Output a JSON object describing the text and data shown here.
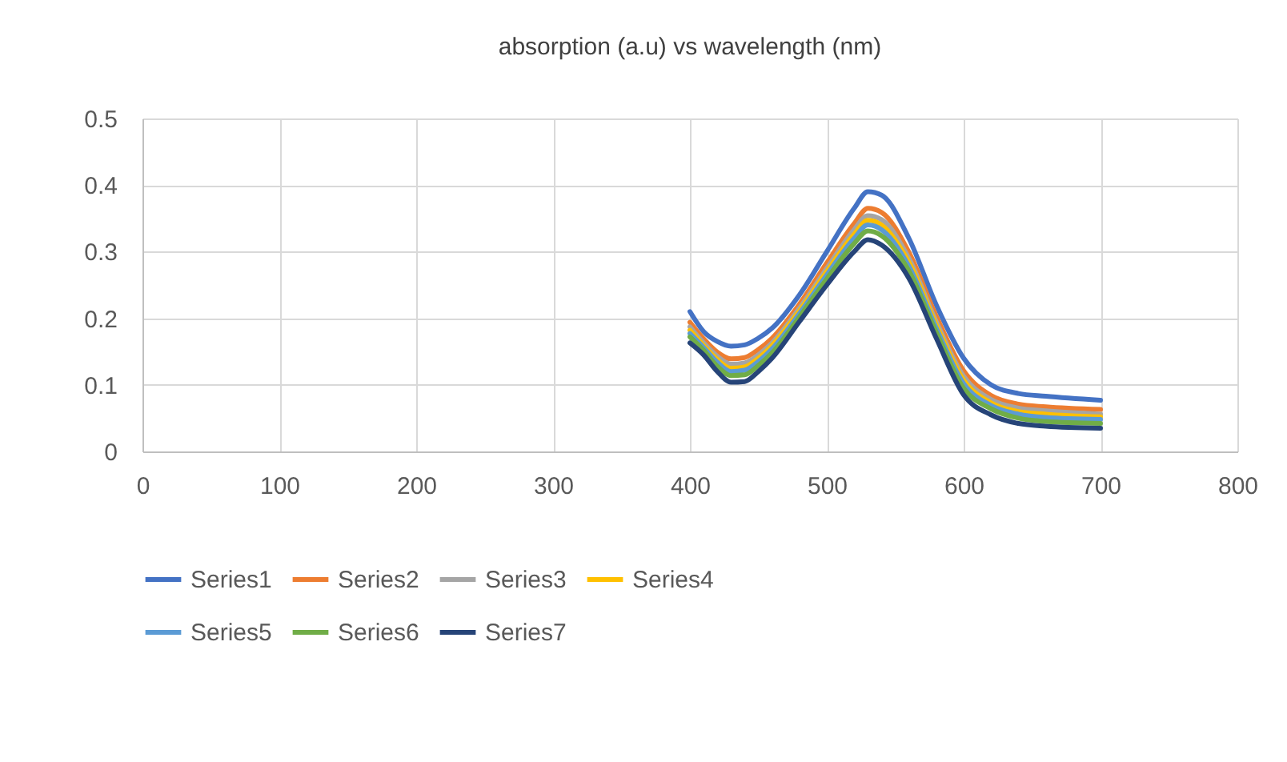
{
  "chart_data": {
    "type": "line",
    "title": "absorption (a.u) vs wavelength (nm)",
    "x": [
      400,
      410,
      420,
      430,
      440,
      450,
      460,
      480,
      500,
      520,
      530,
      540,
      560,
      580,
      600,
      620,
      640,
      660,
      700
    ],
    "series": [
      {
        "name": "Series1",
        "color": "#4472c4",
        "values": [
          0.21,
          0.18,
          0.165,
          0.158,
          0.16,
          0.17,
          0.185,
          0.235,
          0.3,
          0.365,
          0.39,
          0.385,
          0.32,
          0.22,
          0.14,
          0.1,
          0.087,
          0.083,
          0.077
        ]
      },
      {
        "name": "Series2",
        "color": "#ed7d31",
        "values": [
          0.194,
          0.169,
          0.149,
          0.139,
          0.141,
          0.153,
          0.17,
          0.221,
          0.283,
          0.342,
          0.365,
          0.359,
          0.299,
          0.203,
          0.121,
          0.084,
          0.071,
          0.067,
          0.063
        ]
      },
      {
        "name": "Series3",
        "color": "#a5a5a5",
        "values": [
          0.187,
          0.163,
          0.143,
          0.131,
          0.133,
          0.145,
          0.163,
          0.215,
          0.275,
          0.333,
          0.354,
          0.348,
          0.29,
          0.195,
          0.113,
          0.078,
          0.065,
          0.061,
          0.056
        ]
      },
      {
        "name": "Series4",
        "color": "#ffc000",
        "values": [
          0.182,
          0.159,
          0.138,
          0.125,
          0.127,
          0.14,
          0.159,
          0.211,
          0.27,
          0.326,
          0.347,
          0.34,
          0.284,
          0.19,
          0.107,
          0.073,
          0.06,
          0.056,
          0.052
        ]
      },
      {
        "name": "Series5",
        "color": "#5b9bd5",
        "values": [
          0.177,
          0.156,
          0.134,
          0.12,
          0.122,
          0.135,
          0.154,
          0.207,
          0.265,
          0.32,
          0.34,
          0.333,
          0.278,
          0.185,
          0.102,
          0.069,
          0.056,
          0.051,
          0.048
        ]
      },
      {
        "name": "Series6",
        "color": "#70ad47",
        "values": [
          0.172,
          0.152,
          0.128,
          0.114,
          0.115,
          0.129,
          0.148,
          0.202,
          0.259,
          0.312,
          0.331,
          0.324,
          0.271,
          0.179,
          0.095,
          0.064,
          0.05,
          0.045,
          0.042
        ]
      },
      {
        "name": "Series7",
        "color": "#264478",
        "values": [
          0.163,
          0.145,
          0.12,
          0.104,
          0.105,
          0.12,
          0.14,
          0.195,
          0.25,
          0.3,
          0.318,
          0.31,
          0.26,
          0.17,
          0.085,
          0.055,
          0.042,
          0.038,
          0.035
        ]
      }
    ],
    "xlim": [
      0,
      800
    ],
    "xticks": [
      0,
      100,
      200,
      300,
      400,
      500,
      600,
      700,
      800
    ],
    "ylim": [
      0,
      0.5
    ],
    "yticks": [
      0,
      0.1,
      0.2,
      0.3,
      0.4,
      0.5
    ],
    "grid": true,
    "legend": "bottom",
    "marker": "none",
    "line_style": "solid"
  }
}
